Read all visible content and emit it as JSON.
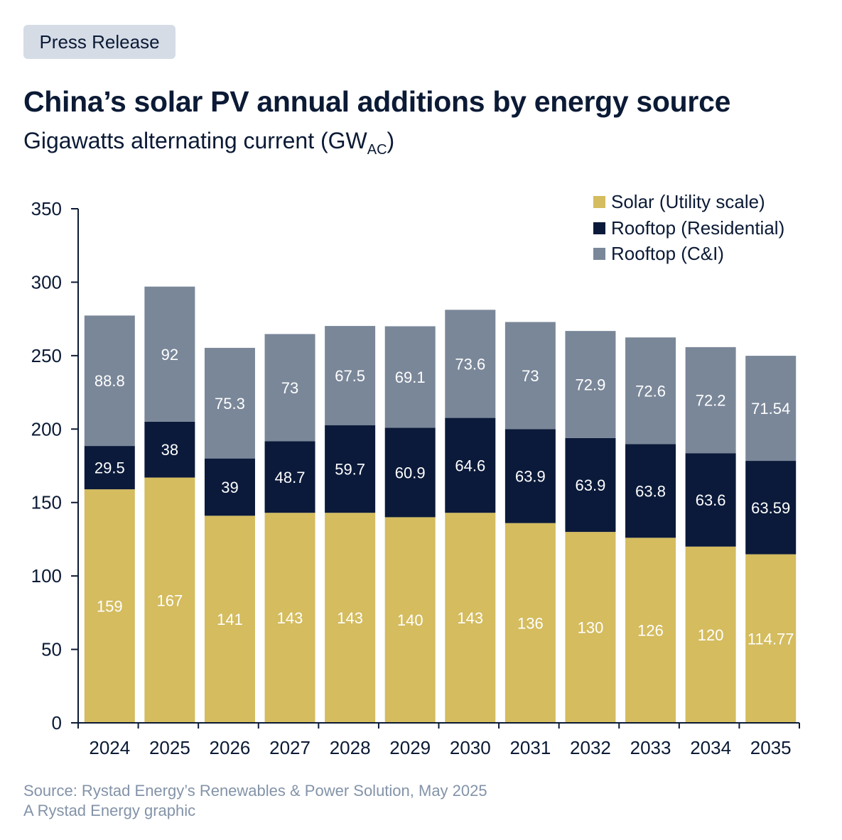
{
  "badge": "Press Release",
  "title": "China’s solar PV annual additions by energy source",
  "subtitle": {
    "main": "Gigawatts alternating current (GW",
    "sub": "AC",
    "end": ")"
  },
  "footer": {
    "source": "Source: Rystad Energy’s Renewables & Power Solution, May 2025",
    "credit": "A Rystad Energy graphic"
  },
  "colors": {
    "utility": "#d4bc5f",
    "residential": "#0b1a3a",
    "ci": "#7a8799",
    "axis": "#0b1a35"
  },
  "chart_data": {
    "type": "bar",
    "stacked": true,
    "categories": [
      "2024",
      "2025",
      "2026",
      "2027",
      "2028",
      "2029",
      "2030",
      "2031",
      "2032",
      "2033",
      "2034",
      "2035"
    ],
    "series": [
      {
        "name": "Solar (Utility scale)",
        "values": [
          159,
          167,
          141,
          143,
          143,
          140,
          143,
          136,
          130,
          126,
          120,
          114.77
        ]
      },
      {
        "name": "Rooftop (Residential)",
        "values": [
          29.5,
          38,
          39,
          48.7,
          59.7,
          60.9,
          64.6,
          63.9,
          63.9,
          63.8,
          63.6,
          63.59
        ]
      },
      {
        "name": "Rooftop (C&I)",
        "values": [
          88.8,
          92,
          75.3,
          73,
          67.5,
          69.1,
          73.6,
          73,
          72.9,
          72.6,
          72.2,
          71.54
        ]
      }
    ],
    "yticks": [
      0,
      50,
      100,
      150,
      200,
      250,
      300,
      350
    ],
    "ylim": [
      0,
      350
    ],
    "legend_position": "top-right",
    "grid": false
  }
}
